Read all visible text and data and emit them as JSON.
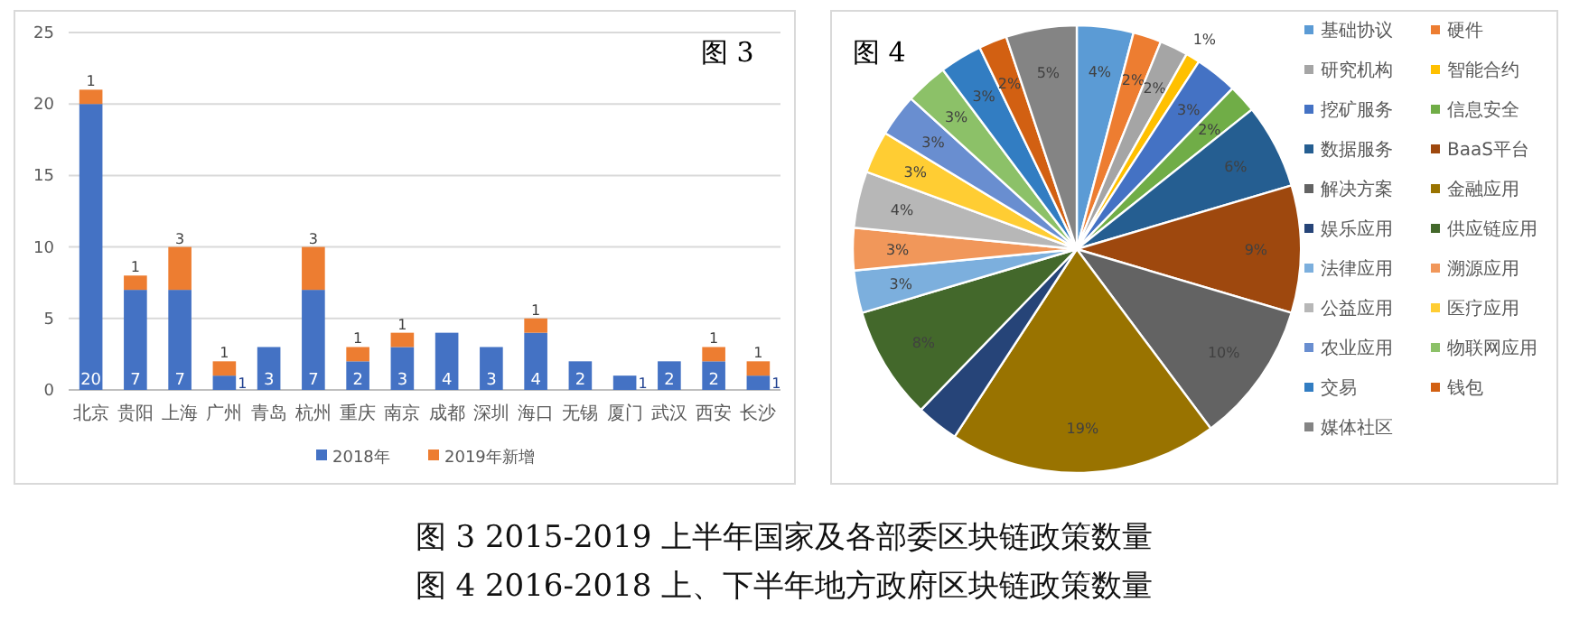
{
  "chart_data": [
    {
      "type": "bar",
      "stacked": true,
      "categories": [
        "北京",
        "贵阳",
        "上海",
        "广州",
        "青岛",
        "杭州",
        "重庆",
        "南京",
        "成都",
        "深圳",
        "海口",
        "无锡",
        "厦门",
        "武汉",
        "西安",
        "长沙"
      ],
      "series": [
        {
          "name": "2018年",
          "color": "#4472c4",
          "values": [
            20,
            7,
            7,
            1,
            3,
            7,
            2,
            3,
            4,
            3,
            4,
            2,
            1,
            2,
            2,
            1
          ],
          "value_labels": [
            "20",
            "7",
            "7",
            "1",
            "3",
            "7",
            "2",
            "3",
            "4",
            "3",
            "4",
            "2",
            "1",
            "2",
            "2",
            "1"
          ]
        },
        {
          "name": "2019年新增",
          "color": "#ed7d31",
          "values": [
            1,
            1,
            3,
            1,
            0,
            3,
            1,
            1,
            0,
            0,
            1,
            0,
            0,
            0,
            1,
            1
          ],
          "value_labels": [
            "1",
            "1",
            "3",
            "1",
            null,
            "3",
            "1",
            "1",
            null,
            null,
            "1",
            null,
            null,
            null,
            "1",
            "1"
          ]
        }
      ],
      "ylim": [
        0,
        25
      ],
      "yticks": [
        0,
        5,
        10,
        15,
        20,
        25
      ],
      "grid": "y",
      "legend": "bottom",
      "annotations": [
        "图 3",
        "图 3  2015-2019 上半年国家及各部委区块链政策数量"
      ]
    },
    {
      "type": "pie",
      "categories": [
        "基础协议",
        "硬件",
        "研究机构",
        "智能合约",
        "挖矿服务",
        "信息安全",
        "数据服务",
        "BaaS平台",
        "解决方案",
        "金融应用",
        "娱乐应用",
        "供应链应用",
        "法律应用",
        "溯源应用",
        "公益应用",
        "医疗应用",
        "农业应用",
        "物联网应用",
        "交易",
        "钱包",
        "媒体社区"
      ],
      "values": [
        4,
        2,
        2,
        1,
        3,
        2,
        6,
        9,
        10,
        19,
        3,
        8,
        3,
        3,
        4,
        3,
        3,
        3,
        3,
        2,
        5
      ],
      "value_labels": [
        "4%",
        "2%",
        "2%",
        "1%",
        "3%",
        "2%",
        "6%",
        "9%",
        "10%",
        "19%",
        null,
        "8%",
        "3%",
        "3%",
        "4%",
        "3%",
        "3%",
        "3%",
        "3%",
        "2%",
        "5%"
      ],
      "colors": [
        "#5b9bd5",
        "#ed7d31",
        "#a5a5a5",
        "#ffc000",
        "#4472c4",
        "#70ad47",
        "#255e91",
        "#9e480e",
        "#636363",
        "#997300",
        "#264478",
        "#43682b",
        "#7cafdd",
        "#f1975a",
        "#b7b7b7",
        "#ffcd33",
        "#698ed0",
        "#8cc168",
        "#327dc2",
        "#d26012",
        "#848484"
      ],
      "legend": "right",
      "annotations": [
        "图 4",
        "图 4  2016-2018 上、下半年地方政府区块链政策数量"
      ]
    }
  ]
}
